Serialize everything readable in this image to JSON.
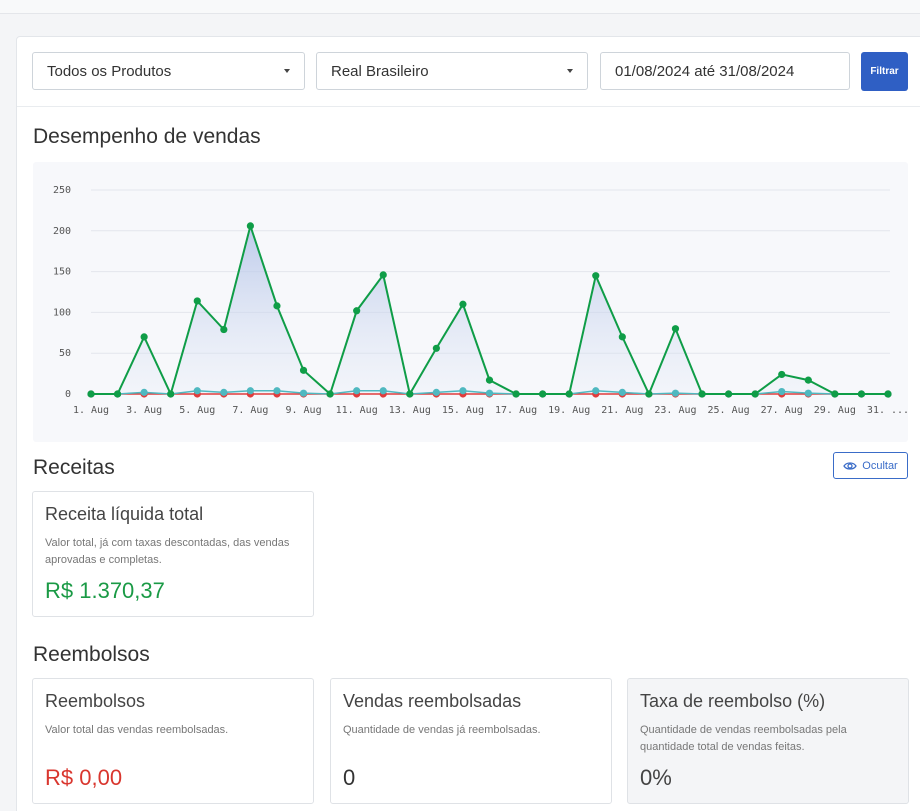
{
  "filters": {
    "product": "Todos os Produtos",
    "currency": "Real Brasileiro",
    "date_range": "01/08/2024 até 31/08/2024",
    "filter_button": "Filtrar"
  },
  "sections": {
    "sales_title": "Desempenho de vendas",
    "revenue_title": "Receitas",
    "refunds_title": "Reembolsos",
    "hide_button": "Ocultar"
  },
  "revenue_card": {
    "title": "Receita líquida total",
    "description": "Valor total, já com taxas descontadas, das vendas aprovadas e completas.",
    "value": "R$ 1.370,37"
  },
  "refund_cards": [
    {
      "title": "Reembolsos",
      "description": "Valor total das vendas reembolsadas.",
      "value": "R$ 0,00"
    },
    {
      "title": "Vendas reembolsadas",
      "description": "Quantidade de vendas já reembolsadas.",
      "value": "0"
    },
    {
      "title": "Taxa de reembolso (%)",
      "description": "Quantidade de vendas reembolsadas pela quantidade total de vendas feitas.",
      "value": "0%"
    }
  ],
  "colors": {
    "primary": "#2f5fc4",
    "green": "#0f9d47",
    "teal": "#4fb8c0",
    "red": "#e03c3c",
    "positive_text": "#1a9a45",
    "negative_text": "#d9362e"
  },
  "icons": {
    "dropdown": "chevron-down-icon",
    "hide": "eye-icon"
  },
  "chart_data": {
    "type": "line",
    "ylim": [
      0,
      250
    ],
    "y_ticks": [
      "0",
      "50",
      "100",
      "150",
      "200",
      "250"
    ],
    "x": [
      "1. Aug",
      "2. Aug",
      "3. Aug",
      "4. Aug",
      "5. Aug",
      "6. Aug",
      "7. Aug",
      "8. Aug",
      "9. Aug",
      "10. Aug",
      "11. Aug",
      "12. Aug",
      "13. Aug",
      "14. Aug",
      "15. Aug",
      "16. Aug",
      "17. Aug",
      "18. Aug",
      "19. Aug",
      "20. Aug",
      "21. Aug",
      "22. Aug",
      "23. Aug",
      "24. Aug",
      "25. Aug",
      "26. Aug",
      "27. Aug",
      "28. Aug",
      "29. Aug",
      "30. Aug",
      "31. Aug"
    ],
    "x_tick_labels": [
      "1. Aug",
      "3. Aug",
      "5. Aug",
      "7. Aug",
      "9. Aug",
      "11. Aug",
      "13. Aug",
      "15. Aug",
      "17. Aug",
      "19. Aug",
      "21. Aug",
      "23. Aug",
      "25. Aug",
      "27. Aug",
      "29. Aug",
      "31. ..."
    ],
    "series": [
      {
        "color": "#0f9d47",
        "values": [
          0,
          0,
          70,
          0,
          114,
          79,
          206,
          108,
          29,
          0,
          102,
          146,
          0,
          56,
          110,
          17,
          0,
          0,
          0,
          145,
          70,
          0,
          80,
          0,
          0,
          0,
          24,
          17,
          0,
          0,
          0
        ]
      },
      {
        "color": "#4fb8c0",
        "values": [
          0,
          0,
          2,
          0,
          4,
          2,
          4,
          4,
          1,
          0,
          4,
          4,
          0,
          2,
          4,
          1,
          0,
          0,
          0,
          4,
          2,
          0,
          1,
          0,
          0,
          0,
          3,
          1,
          0,
          0,
          0
        ]
      },
      {
        "color": "#e03c3c",
        "values": [
          0,
          0,
          0,
          0,
          0,
          0,
          0,
          0,
          0,
          0,
          0,
          0,
          0,
          0,
          0,
          0,
          0,
          0,
          0,
          0,
          0,
          0,
          0,
          0,
          0,
          0,
          0,
          0,
          0,
          0,
          0
        ]
      }
    ]
  }
}
